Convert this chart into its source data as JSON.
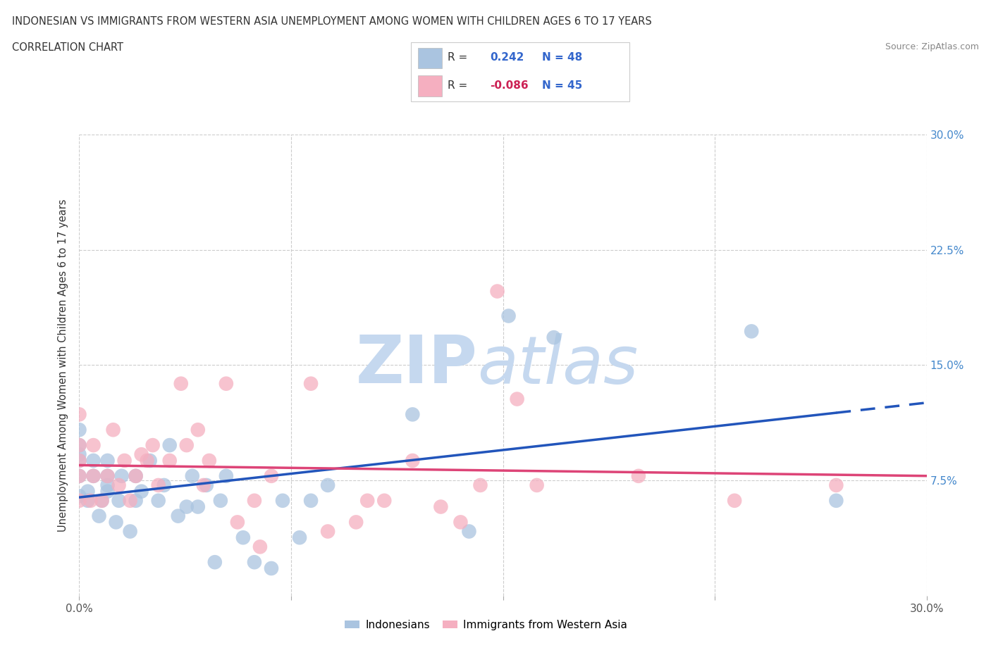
{
  "title_line1": "INDONESIAN VS IMMIGRANTS FROM WESTERN ASIA UNEMPLOYMENT AMONG WOMEN WITH CHILDREN AGES 6 TO 17 YEARS",
  "title_line2": "CORRELATION CHART",
  "source": "Source: ZipAtlas.com",
  "ylabel": "Unemployment Among Women with Children Ages 6 to 17 years",
  "xlim": [
    0.0,
    0.3
  ],
  "ylim": [
    0.0,
    0.3
  ],
  "xticks": [
    0.0,
    0.075,
    0.15,
    0.225,
    0.3
  ],
  "yticks": [
    0.075,
    0.15,
    0.225,
    0.3
  ],
  "xtick_labels_show": [
    "0.0%",
    "30.0%"
  ],
  "ytick_labels": [
    "7.5%",
    "15.0%",
    "22.5%",
    "30.0%"
  ],
  "grid_color": "#cccccc",
  "background_color": "#ffffff",
  "indonesian_color": "#aac4e0",
  "immigrant_color": "#f5afc0",
  "indonesian_line_color": "#2255bb",
  "immigrant_line_color": "#dd4477",
  "R_indonesian": "0.242",
  "N_indonesian": "48",
  "R_immigrant": "-0.086",
  "N_immigrant": "45",
  "watermark_zip": "ZIP",
  "watermark_atlas": "atlas",
  "legend_label1": "Indonesians",
  "legend_label2": "Immigrants from Western Asia",
  "indonesian_x": [
    0.0,
    0.0,
    0.0,
    0.0,
    0.0,
    0.0,
    0.003,
    0.003,
    0.005,
    0.005,
    0.007,
    0.008,
    0.01,
    0.01,
    0.01,
    0.01,
    0.013,
    0.014,
    0.015,
    0.018,
    0.02,
    0.02,
    0.022,
    0.025,
    0.028,
    0.03,
    0.032,
    0.035,
    0.038,
    0.04,
    0.042,
    0.045,
    0.048,
    0.05,
    0.052,
    0.058,
    0.062,
    0.068,
    0.072,
    0.078,
    0.082,
    0.088,
    0.118,
    0.138,
    0.152,
    0.168,
    0.238,
    0.268
  ],
  "indonesian_y": [
    0.065,
    0.078,
    0.088,
    0.092,
    0.098,
    0.108,
    0.062,
    0.068,
    0.078,
    0.088,
    0.052,
    0.062,
    0.068,
    0.072,
    0.078,
    0.088,
    0.048,
    0.062,
    0.078,
    0.042,
    0.062,
    0.078,
    0.068,
    0.088,
    0.062,
    0.072,
    0.098,
    0.052,
    0.058,
    0.078,
    0.058,
    0.072,
    0.022,
    0.062,
    0.078,
    0.038,
    0.022,
    0.018,
    0.062,
    0.038,
    0.062,
    0.072,
    0.118,
    0.042,
    0.182,
    0.168,
    0.172,
    0.062
  ],
  "immigrant_x": [
    0.0,
    0.0,
    0.0,
    0.0,
    0.0,
    0.004,
    0.005,
    0.005,
    0.008,
    0.01,
    0.012,
    0.014,
    0.016,
    0.018,
    0.02,
    0.022,
    0.024,
    0.026,
    0.028,
    0.032,
    0.036,
    0.038,
    0.042,
    0.044,
    0.046,
    0.052,
    0.056,
    0.062,
    0.064,
    0.068,
    0.082,
    0.088,
    0.098,
    0.102,
    0.108,
    0.118,
    0.128,
    0.135,
    0.142,
    0.148,
    0.155,
    0.162,
    0.198,
    0.232,
    0.268
  ],
  "immigrant_y": [
    0.062,
    0.078,
    0.088,
    0.098,
    0.118,
    0.062,
    0.078,
    0.098,
    0.062,
    0.078,
    0.108,
    0.072,
    0.088,
    0.062,
    0.078,
    0.092,
    0.088,
    0.098,
    0.072,
    0.088,
    0.138,
    0.098,
    0.108,
    0.072,
    0.088,
    0.138,
    0.048,
    0.062,
    0.032,
    0.078,
    0.138,
    0.042,
    0.048,
    0.062,
    0.062,
    0.088,
    0.058,
    0.048,
    0.072,
    0.198,
    0.128,
    0.072,
    0.078,
    0.062,
    0.072
  ]
}
